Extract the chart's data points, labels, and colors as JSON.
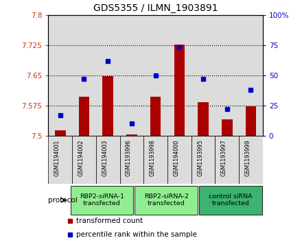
{
  "title": "GDS5355 / ILMN_1903891",
  "samples": [
    "GSM1194001",
    "GSM1194002",
    "GSM1194003",
    "GSM1193996",
    "GSM1193998",
    "GSM1194000",
    "GSM1193995",
    "GSM1193997",
    "GSM1193999"
  ],
  "red_values": [
    7.513,
    7.597,
    7.648,
    7.503,
    7.597,
    7.726,
    7.583,
    7.54,
    7.573
  ],
  "blue_values": [
    17,
    47,
    62,
    10,
    50,
    73,
    47,
    22,
    38
  ],
  "ylim_left": [
    7.5,
    7.8
  ],
  "ylim_right": [
    0,
    100
  ],
  "yticks_left": [
    7.5,
    7.575,
    7.65,
    7.725,
    7.8
  ],
  "yticks_right": [
    0,
    25,
    50,
    75,
    100
  ],
  "ytick_labels_left": [
    "7.5",
    "7.575",
    "7.65",
    "7.725",
    "7.8"
  ],
  "ytick_labels_right": [
    "0",
    "25",
    "50",
    "75",
    "100%"
  ],
  "groups": [
    {
      "label": "RBP2-siRNA-1\ntransfected",
      "start": 0,
      "end": 3,
      "color": "#90EE90"
    },
    {
      "label": "RBP2-siRNA-2\ntransfected",
      "start": 3,
      "end": 6,
      "color": "#90EE90"
    },
    {
      "label": "control siRNA\ntransfected",
      "start": 6,
      "end": 9,
      "color": "#3CB371"
    }
  ],
  "bar_color": "#AA0000",
  "dot_color": "#0000CC",
  "bg_color": "#DCDCDC",
  "plot_bg": "#FFFFFF",
  "legend_red_label": "transformed count",
  "legend_blue_label": "percentile rank within the sample",
  "protocol_label": "protocol"
}
